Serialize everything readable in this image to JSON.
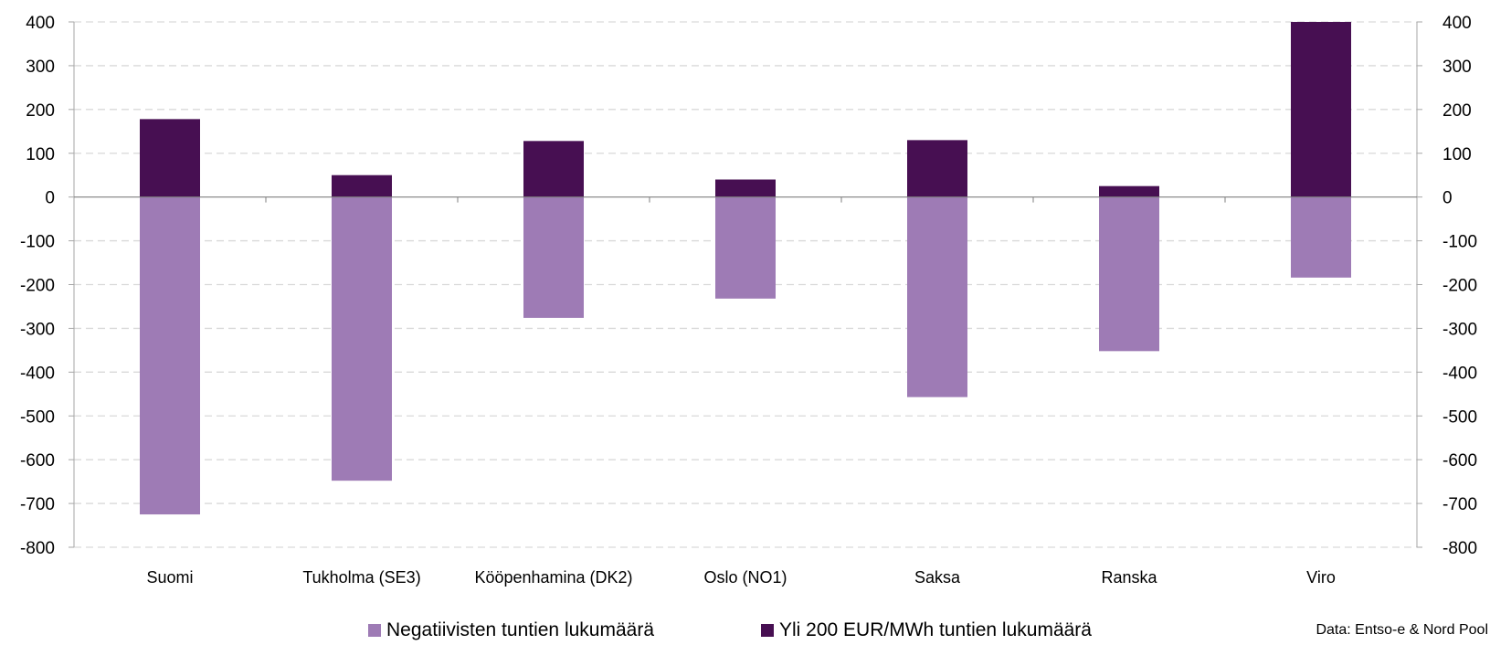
{
  "chart_data": {
    "type": "bar",
    "stacked": true,
    "categories": [
      "Suomi",
      "Tukholma (SE3)",
      "Kööpenhamina (DK2)",
      "Oslo (NO1)",
      "Saksa",
      "Ranska",
      "Viro"
    ],
    "series": [
      {
        "name": "Negatiivisten tuntien lukumäärä",
        "values": [
          -725,
          -648,
          -276,
          -232,
          -457,
          -352,
          -184
        ],
        "color": "#9e7bb5"
      },
      {
        "name": "Yli 200 EUR/MWh tuntien lukumäärä",
        "values": [
          178,
          50,
          128,
          40,
          130,
          25,
          400
        ],
        "color": "#470f52"
      }
    ],
    "ylim": [
      -800,
      400
    ],
    "yticks": [
      400,
      300,
      200,
      100,
      0,
      -100,
      -200,
      -300,
      -400,
      -500,
      -600,
      -700,
      -800
    ],
    "secondary_axis": true,
    "grid": "horizontal dashed",
    "legend": "bottom",
    "title": "",
    "xlabel": "",
    "ylabel": ""
  },
  "source_note": "Data: Entso-e & Nord Pool"
}
